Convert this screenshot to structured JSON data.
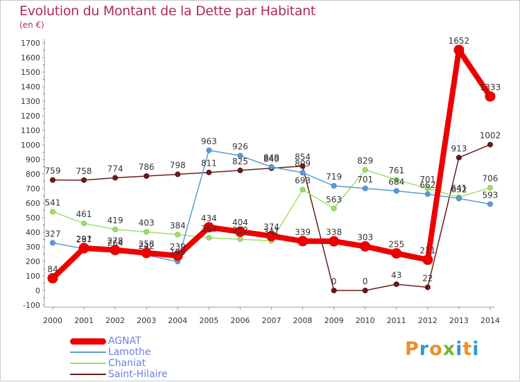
{
  "header": {
    "title": "Evolution du Montant de la Dette par Habitant",
    "unit": "(en €)"
  },
  "brand": {
    "letters": [
      "P",
      "r",
      "o",
      "x",
      "i",
      "t",
      "i"
    ],
    "colors": [
      "#f28c28",
      "#2a9ad6",
      "#f28c28",
      "#74b72e",
      "#2a9ad6",
      "#f28c28",
      "#2a9ad6"
    ]
  },
  "chart_data": {
    "type": "line",
    "x": [
      "2000",
      "2001",
      "2002",
      "2003",
      "2004",
      "2005",
      "2006",
      "2007",
      "2008",
      "2009",
      "2010",
      "2011",
      "2012",
      "2013",
      "2014"
    ],
    "ylim": [
      -100,
      1700
    ],
    "yticks": [
      -100,
      0,
      100,
      200,
      300,
      400,
      500,
      600,
      700,
      800,
      900,
      1000,
      1100,
      1200,
      1300,
      1400,
      1500,
      1600,
      1700
    ],
    "grid": false,
    "legend_position": "bottom-left",
    "series": [
      {
        "name": "Saint-Hilaire",
        "color": "#6b1a1a",
        "values": [
          759,
          758,
          774,
          786,
          798,
          811,
          825,
          840,
          854,
          0,
          0,
          43,
          22,
          913,
          1002
        ]
      },
      {
        "name": "Chaniat",
        "color": "#9ee06a",
        "values": [
          541,
          461,
          419,
          403,
          384,
          362,
          352,
          341,
          693,
          563,
          829,
          761,
          701,
          641,
          706
        ]
      },
      {
        "name": "Lamothe",
        "color": "#5a9ad6",
        "values": [
          327,
          287,
          264,
          242,
          199,
          963,
          926,
          849,
          809,
          719,
          701,
          684,
          662,
          632,
          593
        ]
      },
      {
        "name": "AGNAT",
        "color": "#ee0000",
        "values": [
          84,
          291,
          278,
          258,
          239,
          434,
          404,
          374,
          339,
          338,
          303,
          255,
          211,
          1652,
          1333
        ]
      }
    ]
  },
  "legend": [
    {
      "name": "AGNAT",
      "color": "#ee0000",
      "width": 9
    },
    {
      "name": "Lamothe",
      "color": "#5a9ad6",
      "width": 1.5
    },
    {
      "name": "Chaniat",
      "color": "#9ee06a",
      "width": 1.5
    },
    {
      "name": "Saint-Hilaire",
      "color": "#6b1a1a",
      "width": 1.5
    }
  ]
}
